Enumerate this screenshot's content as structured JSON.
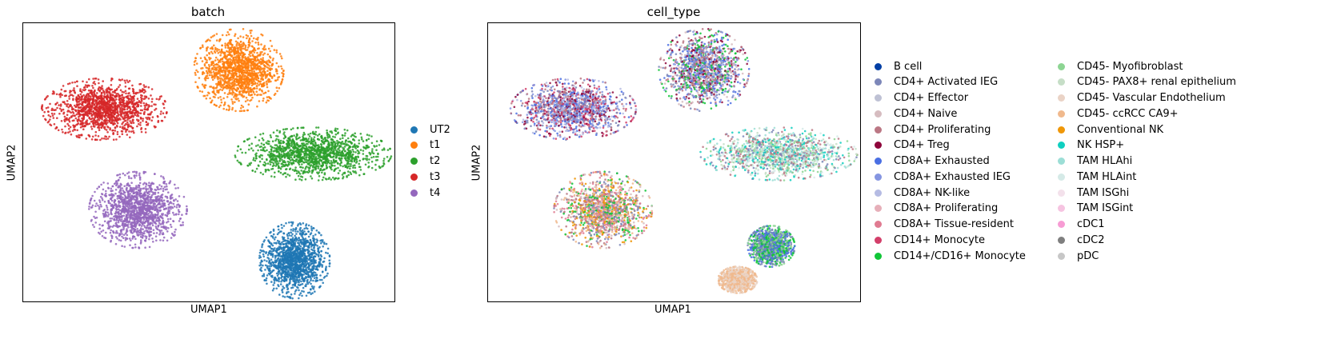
{
  "chart_data": [
    {
      "type": "scatter",
      "title": "batch",
      "xlabel": "UMAP1",
      "ylabel": "UMAP2",
      "grid": false,
      "ticks": false,
      "legend_position": "right",
      "legend": [
        {
          "name": "UT2",
          "color": "#1f77b4"
        },
        {
          "name": "t1",
          "color": "#ff7f0e"
        },
        {
          "name": "t2",
          "color": "#2ca02c"
        },
        {
          "name": "t3",
          "color": "#d62728"
        },
        {
          "name": "t4",
          "color": "#9467bd"
        }
      ],
      "clusters": [
        {
          "series": "t3",
          "center": [
            0.22,
            0.69
          ],
          "spread": [
            0.16,
            0.105
          ]
        },
        {
          "series": "t1",
          "center": [
            0.58,
            0.83
          ],
          "spread": [
            0.115,
            0.14
          ]
        },
        {
          "series": "t2",
          "center": [
            0.78,
            0.53
          ],
          "spread": [
            0.2,
            0.09
          ]
        },
        {
          "series": "t4",
          "center": [
            0.31,
            0.33
          ],
          "spread": [
            0.125,
            0.13
          ]
        },
        {
          "series": "UT2",
          "center": [
            0.73,
            0.15
          ],
          "spread": [
            0.09,
            0.13
          ]
        }
      ]
    },
    {
      "type": "scatter",
      "title": "cell_type",
      "xlabel": "UMAP1",
      "ylabel": "UMAP2",
      "grid": false,
      "ticks": false,
      "legend_position": "right, two columns",
      "legend": [
        {
          "name": "B cell",
          "color": "#023fa5"
        },
        {
          "name": "CD4+ Activated IEG",
          "color": "#7d87b9"
        },
        {
          "name": "CD4+ Effector",
          "color": "#bec1d4"
        },
        {
          "name": "CD4+ Naive",
          "color": "#d6bcc0"
        },
        {
          "name": "CD4+ Proliferating",
          "color": "#bb7784"
        },
        {
          "name": "CD4+ Treg",
          "color": "#8e063b"
        },
        {
          "name": "CD8A+ Exhausted",
          "color": "#4a6fe3"
        },
        {
          "name": "CD8A+ Exhausted IEG",
          "color": "#8595e1"
        },
        {
          "name": "CD8A+ NK-like",
          "color": "#b5bbe3"
        },
        {
          "name": "CD8A+ Proliferating",
          "color": "#e6afb9"
        },
        {
          "name": "CD8A+ Tissue-resident",
          "color": "#e07b91"
        },
        {
          "name": "CD14+ Monocyte",
          "color": "#d33f6a"
        },
        {
          "name": "CD14+/CD16+ Monocyte",
          "color": "#11c638"
        },
        {
          "name": "CD45- Myofibroblast",
          "color": "#8dd593"
        },
        {
          "name": "CD45- PAX8+ renal epithelium",
          "color": "#c6dec7"
        },
        {
          "name": "CD45- Vascular Endothelium",
          "color": "#ead3c6"
        },
        {
          "name": "CD45- ccRCC CA9+",
          "color": "#f0b98d"
        },
        {
          "name": "Conventional NK",
          "color": "#ef9708"
        },
        {
          "name": "NK HSP+",
          "color": "#0fcfc0"
        },
        {
          "name": "TAM HLAhi",
          "color": "#9cded6"
        },
        {
          "name": "TAM HLAint",
          "color": "#d5eae7"
        },
        {
          "name": "TAM ISGhi",
          "color": "#f3e1eb"
        },
        {
          "name": "TAM ISGint",
          "color": "#f6c4e1"
        },
        {
          "name": "cDC1",
          "color": "#f79cd4"
        },
        {
          "name": "cDC2",
          "color": "#7f7f7f"
        },
        {
          "name": "pDC",
          "color": "#c7c7c7"
        }
      ],
      "clusters": [
        {
          "mix": [
            "#4a6fe3",
            "#8595e1",
            "#7d87b9",
            "#b5bbe3",
            "#bb7784",
            "#d33f6a",
            "#8e063b"
          ],
          "center": [
            0.23,
            0.69
          ],
          "spread": [
            0.16,
            0.105
          ]
        },
        {
          "mix": [
            "#7d87b9",
            "#bb7784",
            "#8595e1",
            "#d6bcc0",
            "#8e063b",
            "#4a6fe3",
            "#11c638"
          ],
          "center": [
            0.58,
            0.83
          ],
          "spread": [
            0.115,
            0.14
          ]
        },
        {
          "mix": [
            "#9cded6",
            "#c6dec7",
            "#d5eae7",
            "#bb7784",
            "#7d87b9",
            "#0fcfc0",
            "#8dd593"
          ],
          "center": [
            0.78,
            0.53
          ],
          "spread": [
            0.2,
            0.09
          ]
        },
        {
          "mix": [
            "#f0b98d",
            "#bb7784",
            "#ef9708",
            "#7d87b9",
            "#11c638",
            "#d6bcc0",
            "#e07b91"
          ],
          "center": [
            0.31,
            0.33
          ],
          "spread": [
            0.125,
            0.13
          ]
        },
        {
          "mix": [
            "#11c638",
            "#7d87b9",
            "#8dd593",
            "#4a6fe3"
          ],
          "center": [
            0.76,
            0.2
          ],
          "spread": [
            0.06,
            0.07
          ]
        },
        {
          "mix": [
            "#f0b98d",
            "#ead3c6"
          ],
          "center": [
            0.67,
            0.08
          ],
          "spread": [
            0.05,
            0.045
          ]
        }
      ]
    }
  ]
}
